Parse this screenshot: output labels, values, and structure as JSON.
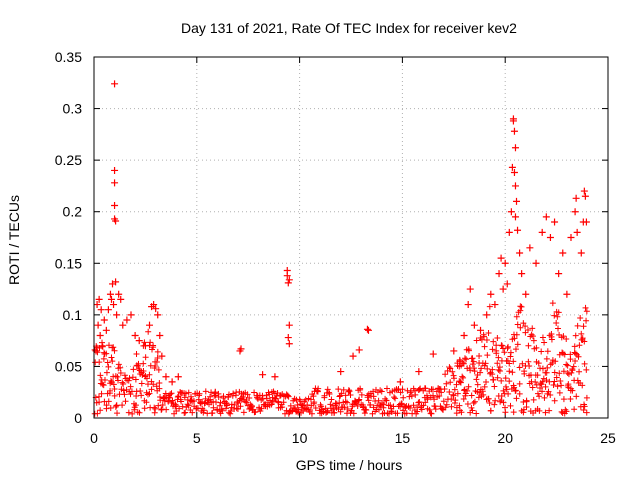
{
  "chart_data": {
    "type": "scatter",
    "title": "Day 131 of 2021, Rate Of TEC Index for receiver kev2",
    "xlabel": "GPS time / hours",
    "ylabel": "ROTI / TECUs",
    "xlim": [
      0,
      25
    ],
    "ylim": [
      0,
      0.35
    ],
    "x_ticks": [
      0,
      5,
      10,
      15,
      20,
      25
    ],
    "y_ticks": [
      0,
      0.05,
      0.1,
      0.15,
      0.2,
      0.25,
      0.3,
      0.35
    ],
    "x_tick_labels": [
      "0",
      "5",
      "10",
      "15",
      "20",
      "25"
    ],
    "y_tick_labels": [
      "0",
      "0.05",
      "0.1",
      "0.15",
      "0.2",
      "0.25",
      "0.3",
      "0.35"
    ],
    "grid": true,
    "marker": "+",
    "marker_color": "#ff0000",
    "series": [
      {
        "points": [
          [
            0.1,
            0.065
          ],
          [
            0.15,
            0.11
          ],
          [
            0.2,
            0.09
          ],
          [
            0.25,
            0.115
          ],
          [
            0.3,
            0.08
          ],
          [
            0.35,
            0.105
          ],
          [
            0.4,
            0.07
          ],
          [
            0.5,
            0.095
          ],
          [
            0.6,
            0.085
          ],
          [
            0.7,
            0.105
          ],
          [
            0.8,
            0.12
          ],
          [
            0.85,
            0.115
          ],
          [
            0.9,
            0.13
          ],
          [
            0.95,
            0.11
          ],
          [
            1.0,
            0.324
          ],
          [
            1.0,
            0.24
          ],
          [
            1.0,
            0.228
          ],
          [
            1.0,
            0.206
          ],
          [
            1.0,
            0.193
          ],
          [
            1.05,
            0.191
          ],
          [
            1.05,
            0.132
          ],
          [
            1.1,
            0.1
          ],
          [
            1.2,
            0.12
          ],
          [
            1.3,
            0.115
          ],
          [
            1.4,
            0.09
          ],
          [
            1.6,
            0.095
          ],
          [
            1.8,
            0.1
          ],
          [
            2.0,
            0.08
          ],
          [
            2.2,
            0.075
          ],
          [
            2.5,
            0.07
          ],
          [
            2.7,
            0.09
          ],
          [
            2.8,
            0.108
          ],
          [
            2.9,
            0.11
          ],
          [
            3.0,
            0.106
          ],
          [
            3.1,
            0.1
          ],
          [
            3.2,
            0.08
          ],
          [
            3.3,
            0.06
          ],
          [
            3.5,
            0.04
          ],
          [
            3.8,
            0.035
          ],
          [
            4.1,
            0.04
          ],
          [
            5.9,
            0.025
          ],
          [
            7.1,
            0.065
          ],
          [
            7.15,
            0.067
          ],
          [
            8.2,
            0.042
          ],
          [
            8.8,
            0.04
          ],
          [
            9.4,
            0.143
          ],
          [
            9.4,
            0.138
          ],
          [
            9.45,
            0.131
          ],
          [
            9.5,
            0.134
          ],
          [
            9.5,
            0.09
          ],
          [
            9.45,
            0.078
          ],
          [
            9.5,
            0.072
          ],
          [
            12.0,
            0.045
          ],
          [
            12.6,
            0.06
          ],
          [
            12.9,
            0.066
          ],
          [
            13.3,
            0.086
          ],
          [
            13.35,
            0.085
          ],
          [
            14.9,
            0.035
          ],
          [
            15.8,
            0.045
          ],
          [
            16.5,
            0.062
          ],
          [
            17.5,
            0.065
          ],
          [
            17.8,
            0.055
          ],
          [
            18.0,
            0.08
          ],
          [
            18.2,
            0.11
          ],
          [
            18.3,
            0.125
          ],
          [
            18.5,
            0.09
          ],
          [
            18.8,
            0.085
          ],
          [
            19.1,
            0.1
          ],
          [
            19.3,
            0.12
          ],
          [
            19.5,
            0.11
          ],
          [
            19.7,
            0.14
          ],
          [
            19.8,
            0.155
          ],
          [
            19.9,
            0.125
          ],
          [
            20.0,
            0.15
          ],
          [
            20.1,
            0.13
          ],
          [
            20.2,
            0.18
          ],
          [
            20.3,
            0.2
          ],
          [
            20.35,
            0.243
          ],
          [
            20.4,
            0.29
          ],
          [
            20.4,
            0.288
          ],
          [
            20.45,
            0.278
          ],
          [
            20.5,
            0.262
          ],
          [
            20.45,
            0.238
          ],
          [
            20.5,
            0.225
          ],
          [
            20.55,
            0.21
          ],
          [
            20.5,
            0.195
          ],
          [
            20.6,
            0.182
          ],
          [
            20.7,
            0.16
          ],
          [
            20.8,
            0.14
          ],
          [
            21.0,
            0.12
          ],
          [
            21.2,
            0.165
          ],
          [
            21.5,
            0.15
          ],
          [
            21.8,
            0.18
          ],
          [
            22.0,
            0.195
          ],
          [
            22.2,
            0.175
          ],
          [
            22.4,
            0.19
          ],
          [
            22.6,
            0.14
          ],
          [
            22.8,
            0.16
          ],
          [
            23.0,
            0.12
          ],
          [
            23.2,
            0.175
          ],
          [
            23.4,
            0.2
          ],
          [
            23.45,
            0.213
          ],
          [
            23.5,
            0.18
          ],
          [
            23.7,
            0.16
          ],
          [
            23.8,
            0.19
          ],
          [
            23.85,
            0.22
          ],
          [
            23.9,
            0.215
          ],
          [
            23.95,
            0.19
          ]
        ]
      }
    ]
  }
}
